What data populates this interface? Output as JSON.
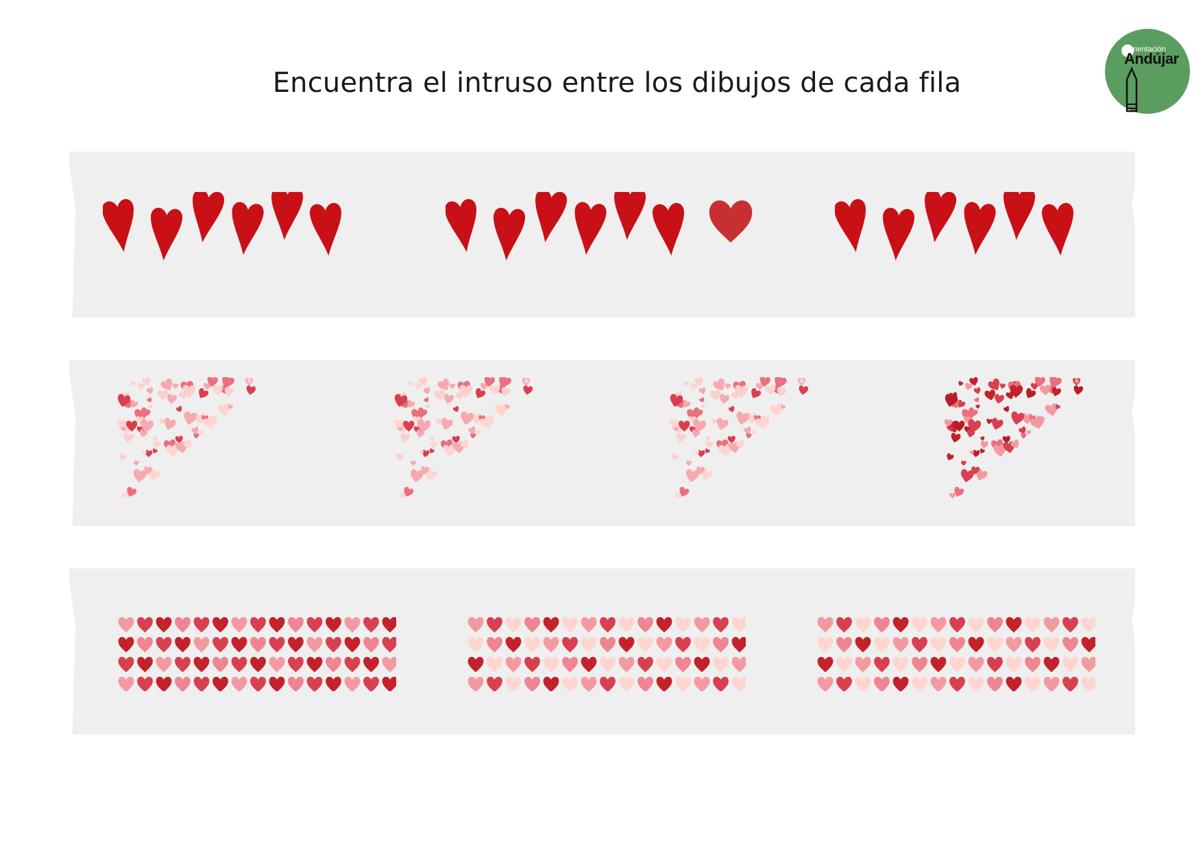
{
  "title": "Encuentra el intruso entre los dibujos de cada fila",
  "logo": {
    "small_text": "rientación",
    "big_text": "Andújar",
    "icon": "pencil-icon"
  },
  "colors": {
    "strip": "#efefef",
    "red": "#c81016",
    "logo_green": "#5a9e5f",
    "heart_palette": [
      "#f39aa0",
      "#d8404f",
      "#c3222b",
      "#ffd5d0",
      "#ee8590"
    ]
  },
  "rows": [
    {
      "name": "hand-drawn-hearts",
      "options": 3,
      "odd_one": 2,
      "odd_detail": "extra-round-heart"
    },
    {
      "name": "heart-confetti-corner",
      "options": 4,
      "odd_one": 4,
      "odd_detail": "darker-colors"
    },
    {
      "name": "heart-grid",
      "options": 3,
      "odd_one": 1,
      "odd_detail": "different-color-pattern"
    }
  ]
}
